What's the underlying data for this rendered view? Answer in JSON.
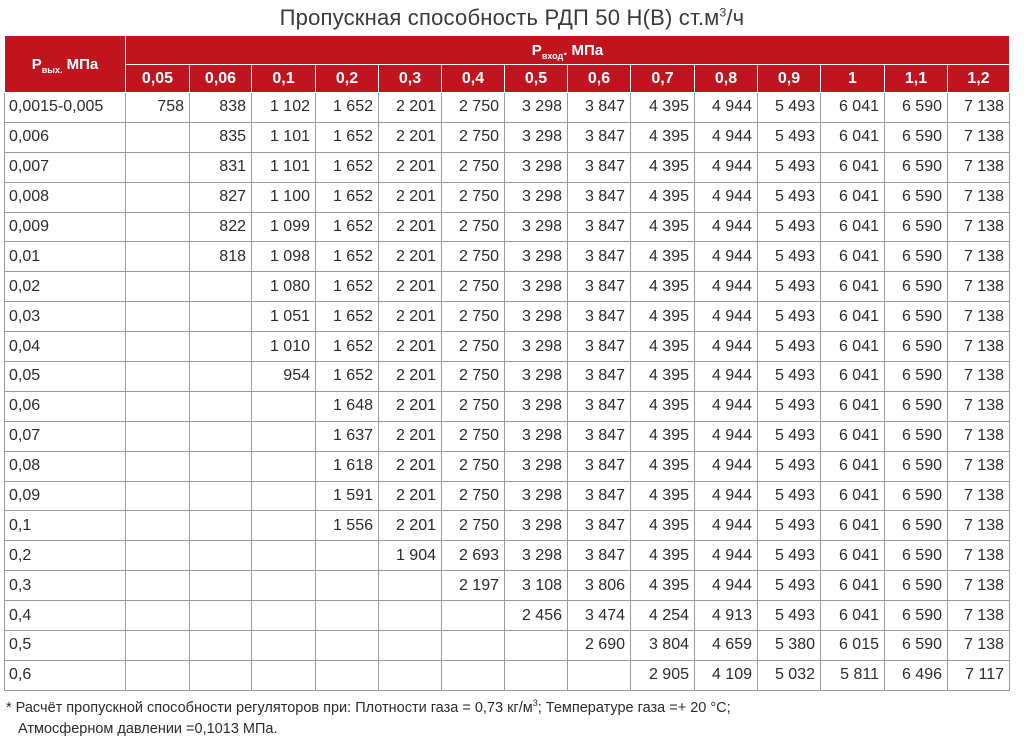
{
  "title": {
    "text": "Пропускная способность РДП 50 Н(В) ст.м",
    "sup": "3",
    "suffix": "/ч"
  },
  "header": {
    "pout": {
      "p": "P",
      "sub": "вых.",
      "unit": " МПа"
    },
    "pin": {
      "p": "P",
      "sub": "вход",
      "unit": ". МПа"
    },
    "columns": [
      "0,05",
      "0,06",
      "0,1",
      "0,2",
      "0,3",
      "0,4",
      "0,5",
      "0,6",
      "0,7",
      "0,8",
      "0,9",
      "1",
      "1,1",
      "1,2"
    ]
  },
  "rows": [
    {
      "label": "0,0015-0,005",
      "values": [
        "758",
        "838",
        "1 102",
        "1 652",
        "2 201",
        "2 750",
        "3 298",
        "3 847",
        "4 395",
        "4 944",
        "5 493",
        "6 041",
        "6 590",
        "7 138"
      ]
    },
    {
      "label": "0,006",
      "values": [
        "",
        "835",
        "1 101",
        "1 652",
        "2 201",
        "2 750",
        "3 298",
        "3 847",
        "4 395",
        "4 944",
        "5 493",
        "6 041",
        "6 590",
        "7 138"
      ]
    },
    {
      "label": "0,007",
      "values": [
        "",
        "831",
        "1 101",
        "1 652",
        "2 201",
        "2 750",
        "3 298",
        "3 847",
        "4 395",
        "4 944",
        "5 493",
        "6 041",
        "6 590",
        "7 138"
      ]
    },
    {
      "label": "0,008",
      "values": [
        "",
        "827",
        "1 100",
        "1 652",
        "2 201",
        "2 750",
        "3 298",
        "3 847",
        "4 395",
        "4 944",
        "5 493",
        "6 041",
        "6 590",
        "7 138"
      ]
    },
    {
      "label": "0,009",
      "values": [
        "",
        "822",
        "1 099",
        "1 652",
        "2 201",
        "2 750",
        "3 298",
        "3 847",
        "4 395",
        "4 944",
        "5 493",
        "6 041",
        "6 590",
        "7 138"
      ]
    },
    {
      "label": "0,01",
      "values": [
        "",
        "818",
        "1 098",
        "1 652",
        "2 201",
        "2 750",
        "3 298",
        "3 847",
        "4 395",
        "4 944",
        "5 493",
        "6 041",
        "6 590",
        "7 138"
      ]
    },
    {
      "label": "0,02",
      "values": [
        "",
        "",
        "1 080",
        "1 652",
        "2 201",
        "2 750",
        "3 298",
        "3 847",
        "4 395",
        "4 944",
        "5 493",
        "6 041",
        "6 590",
        "7 138"
      ]
    },
    {
      "label": "0,03",
      "values": [
        "",
        "",
        "1 051",
        "1 652",
        "2 201",
        "2 750",
        "3 298",
        "3 847",
        "4 395",
        "4 944",
        "5 493",
        "6 041",
        "6 590",
        "7 138"
      ]
    },
    {
      "label": "0,04",
      "values": [
        "",
        "",
        "1 010",
        "1 652",
        "2 201",
        "2 750",
        "3 298",
        "3 847",
        "4 395",
        "4 944",
        "5 493",
        "6 041",
        "6 590",
        "7 138"
      ]
    },
    {
      "label": "0,05",
      "values": [
        "",
        "",
        "954",
        "1 652",
        "2 201",
        "2 750",
        "3 298",
        "3 847",
        "4 395",
        "4 944",
        "5 493",
        "6 041",
        "6 590",
        "7 138"
      ]
    },
    {
      "label": "0,06",
      "values": [
        "",
        "",
        "",
        "1 648",
        "2 201",
        "2 750",
        "3 298",
        "3 847",
        "4 395",
        "4 944",
        "5 493",
        "6 041",
        "6 590",
        "7 138"
      ]
    },
    {
      "label": "0,07",
      "values": [
        "",
        "",
        "",
        "1 637",
        "2 201",
        "2 750",
        "3 298",
        "3 847",
        "4 395",
        "4 944",
        "5 493",
        "6 041",
        "6 590",
        "7 138"
      ]
    },
    {
      "label": "0,08",
      "values": [
        "",
        "",
        "",
        "1 618",
        "2 201",
        "2 750",
        "3 298",
        "3 847",
        "4 395",
        "4 944",
        "5 493",
        "6 041",
        "6 590",
        "7 138"
      ]
    },
    {
      "label": "0,09",
      "values": [
        "",
        "",
        "",
        "1 591",
        "2 201",
        "2 750",
        "3 298",
        "3 847",
        "4 395",
        "4 944",
        "5 493",
        "6 041",
        "6 590",
        "7 138"
      ]
    },
    {
      "label": "0,1",
      "values": [
        "",
        "",
        "",
        "1 556",
        "2 201",
        "2 750",
        "3 298",
        "3 847",
        "4 395",
        "4 944",
        "5 493",
        "6 041",
        "6 590",
        "7 138"
      ]
    },
    {
      "label": "0,2",
      "values": [
        "",
        "",
        "",
        "",
        "1 904",
        "2 693",
        "3 298",
        "3 847",
        "4 395",
        "4 944",
        "5 493",
        "6 041",
        "6 590",
        "7 138"
      ]
    },
    {
      "label": "0,3",
      "values": [
        "",
        "",
        "",
        "",
        "",
        "2 197",
        "3 108",
        "3 806",
        "4 395",
        "4 944",
        "5 493",
        "6 041",
        "6 590",
        "7 138"
      ]
    },
    {
      "label": "0,4",
      "values": [
        "",
        "",
        "",
        "",
        "",
        "",
        "2 456",
        "3 474",
        "4 254",
        "4 913",
        "5 493",
        "6 041",
        "6 590",
        "7 138"
      ]
    },
    {
      "label": "0,5",
      "values": [
        "",
        "",
        "",
        "",
        "",
        "",
        "",
        "2 690",
        "3 804",
        "4 659",
        "5 380",
        "6 015",
        "6 590",
        "7 138"
      ]
    },
    {
      "label": "0,6",
      "values": [
        "",
        "",
        "",
        "",
        "",
        "",
        "",
        "",
        "2 905",
        "4 109",
        "5 032",
        "5 811",
        "6 496",
        "7 117"
      ]
    }
  ],
  "footnote": {
    "line1_a": "* Расчёт пропускной способности регуляторов при: Плотности газа = 0,73 кг/м",
    "line1_sup": "3",
    "line1_b": "; Температуре газа =+ 20 °С;",
    "line2": "Атмосферном давлении =0,1013 МПа."
  },
  "colors": {
    "header_bg": "#c0141f",
    "header_text": "#ffffff",
    "grid": "#9a9a9a"
  }
}
